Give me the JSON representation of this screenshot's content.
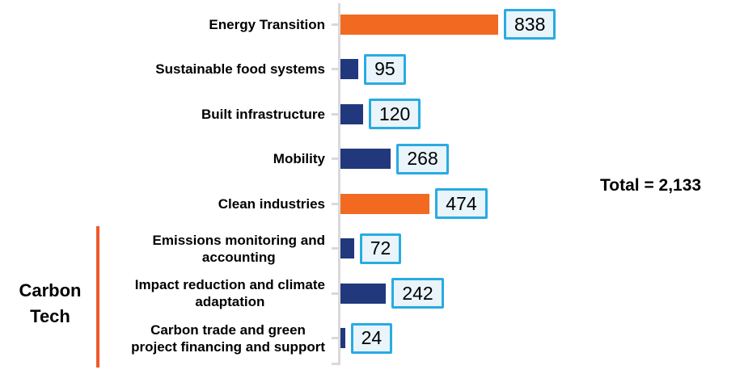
{
  "chart_data": {
    "type": "bar",
    "orientation": "horizontal",
    "categories": [
      "Energy Transition",
      "Sustainable food systems",
      "Built infrastructure",
      "Mobility",
      "Clean industries",
      "Emissions monitoring and\naccounting",
      "Impact reduction and climate\nadaptation",
      "Carbon trade and green\nproject financing and support"
    ],
    "values": [
      838,
      95,
      120,
      268,
      474,
      72,
      242,
      24
    ],
    "bar_colors": [
      "#f26a22",
      "#21387d",
      "#21387d",
      "#21387d",
      "#f26a22",
      "#21387d",
      "#21387d",
      "#21387d"
    ],
    "value_axis_labels_visible": false,
    "grid": false,
    "legend": false,
    "total_label": "Total = 2,133",
    "group_label": "Carbon Tech",
    "group_members": [
      "Emissions monitoring and accounting",
      "Impact reduction and climate adaptation",
      "Carbon trade and green project financing and support"
    ]
  },
  "colors": {
    "bar_orange": "#f26a22",
    "bar_navy": "#21387d",
    "value_box_border": "#29abe2",
    "value_box_fill": "#e9f4fb",
    "axis_gray": "#d9d9d9",
    "bracket_orange": "#f1592a",
    "text_black": "#000000"
  }
}
